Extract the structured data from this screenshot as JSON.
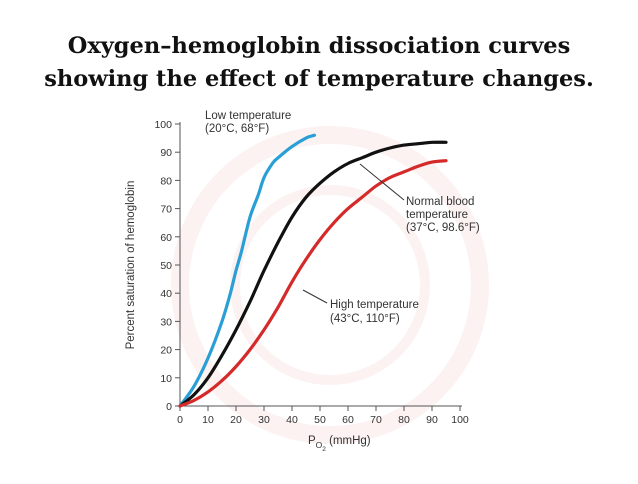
{
  "title": {
    "line1": "Oxygen–hemoglobin dissociation curves",
    "line2": "showing the effect of temperature changes."
  },
  "chart_data": {
    "type": "line",
    "xlabel_main": "P",
    "xlabel_sub": "O",
    "xlabel_subsub": "2",
    "xlabel_unit": " (mmHg)",
    "ylabel": "Percent saturation of hemoglobin",
    "xlim": [
      0,
      100
    ],
    "ylim": [
      0,
      100
    ],
    "xticks": [
      0,
      10,
      20,
      30,
      40,
      50,
      60,
      70,
      80,
      90,
      100
    ],
    "yticks": [
      0,
      10,
      20,
      30,
      40,
      50,
      60,
      70,
      80,
      90,
      100
    ],
    "grid": false,
    "series": [
      {
        "color": "#2a9fd6",
        "annotation": [
          "Low temperature",
          "(20°C, 68°F)"
        ],
        "x": [
          0,
          5,
          10,
          15,
          18,
          20,
          22,
          25,
          28,
          30,
          33,
          35,
          40,
          45,
          48
        ],
        "y": [
          0,
          7,
          17,
          30,
          40,
          48,
          55,
          67,
          75,
          81,
          86,
          88,
          92,
          95,
          96
        ]
      },
      {
        "color": "#111111",
        "annotation": [
          "Normal blood",
          "temperature",
          "(37°C, 98.6°F)"
        ],
        "x": [
          0,
          5,
          10,
          15,
          20,
          25,
          30,
          35,
          40,
          45,
          50,
          55,
          60,
          65,
          70,
          75,
          80,
          85,
          90,
          95
        ],
        "y": [
          0,
          4,
          10,
          18,
          27,
          37,
          48,
          58,
          67,
          74,
          79,
          83,
          86,
          88,
          90,
          91.5,
          92.5,
          93,
          93.5,
          93.5
        ]
      },
      {
        "color": "#d42a2a",
        "annotation": [
          "High temperature",
          "(43°C, 110°F)"
        ],
        "x": [
          0,
          5,
          10,
          15,
          20,
          25,
          30,
          35,
          40,
          45,
          50,
          55,
          60,
          65,
          70,
          75,
          80,
          85,
          90,
          95
        ],
        "y": [
          0,
          2,
          5,
          9,
          14,
          20,
          27,
          35,
          44,
          52,
          59,
          65,
          70,
          74,
          78,
          81,
          83,
          85,
          86.5,
          87
        ]
      }
    ]
  }
}
